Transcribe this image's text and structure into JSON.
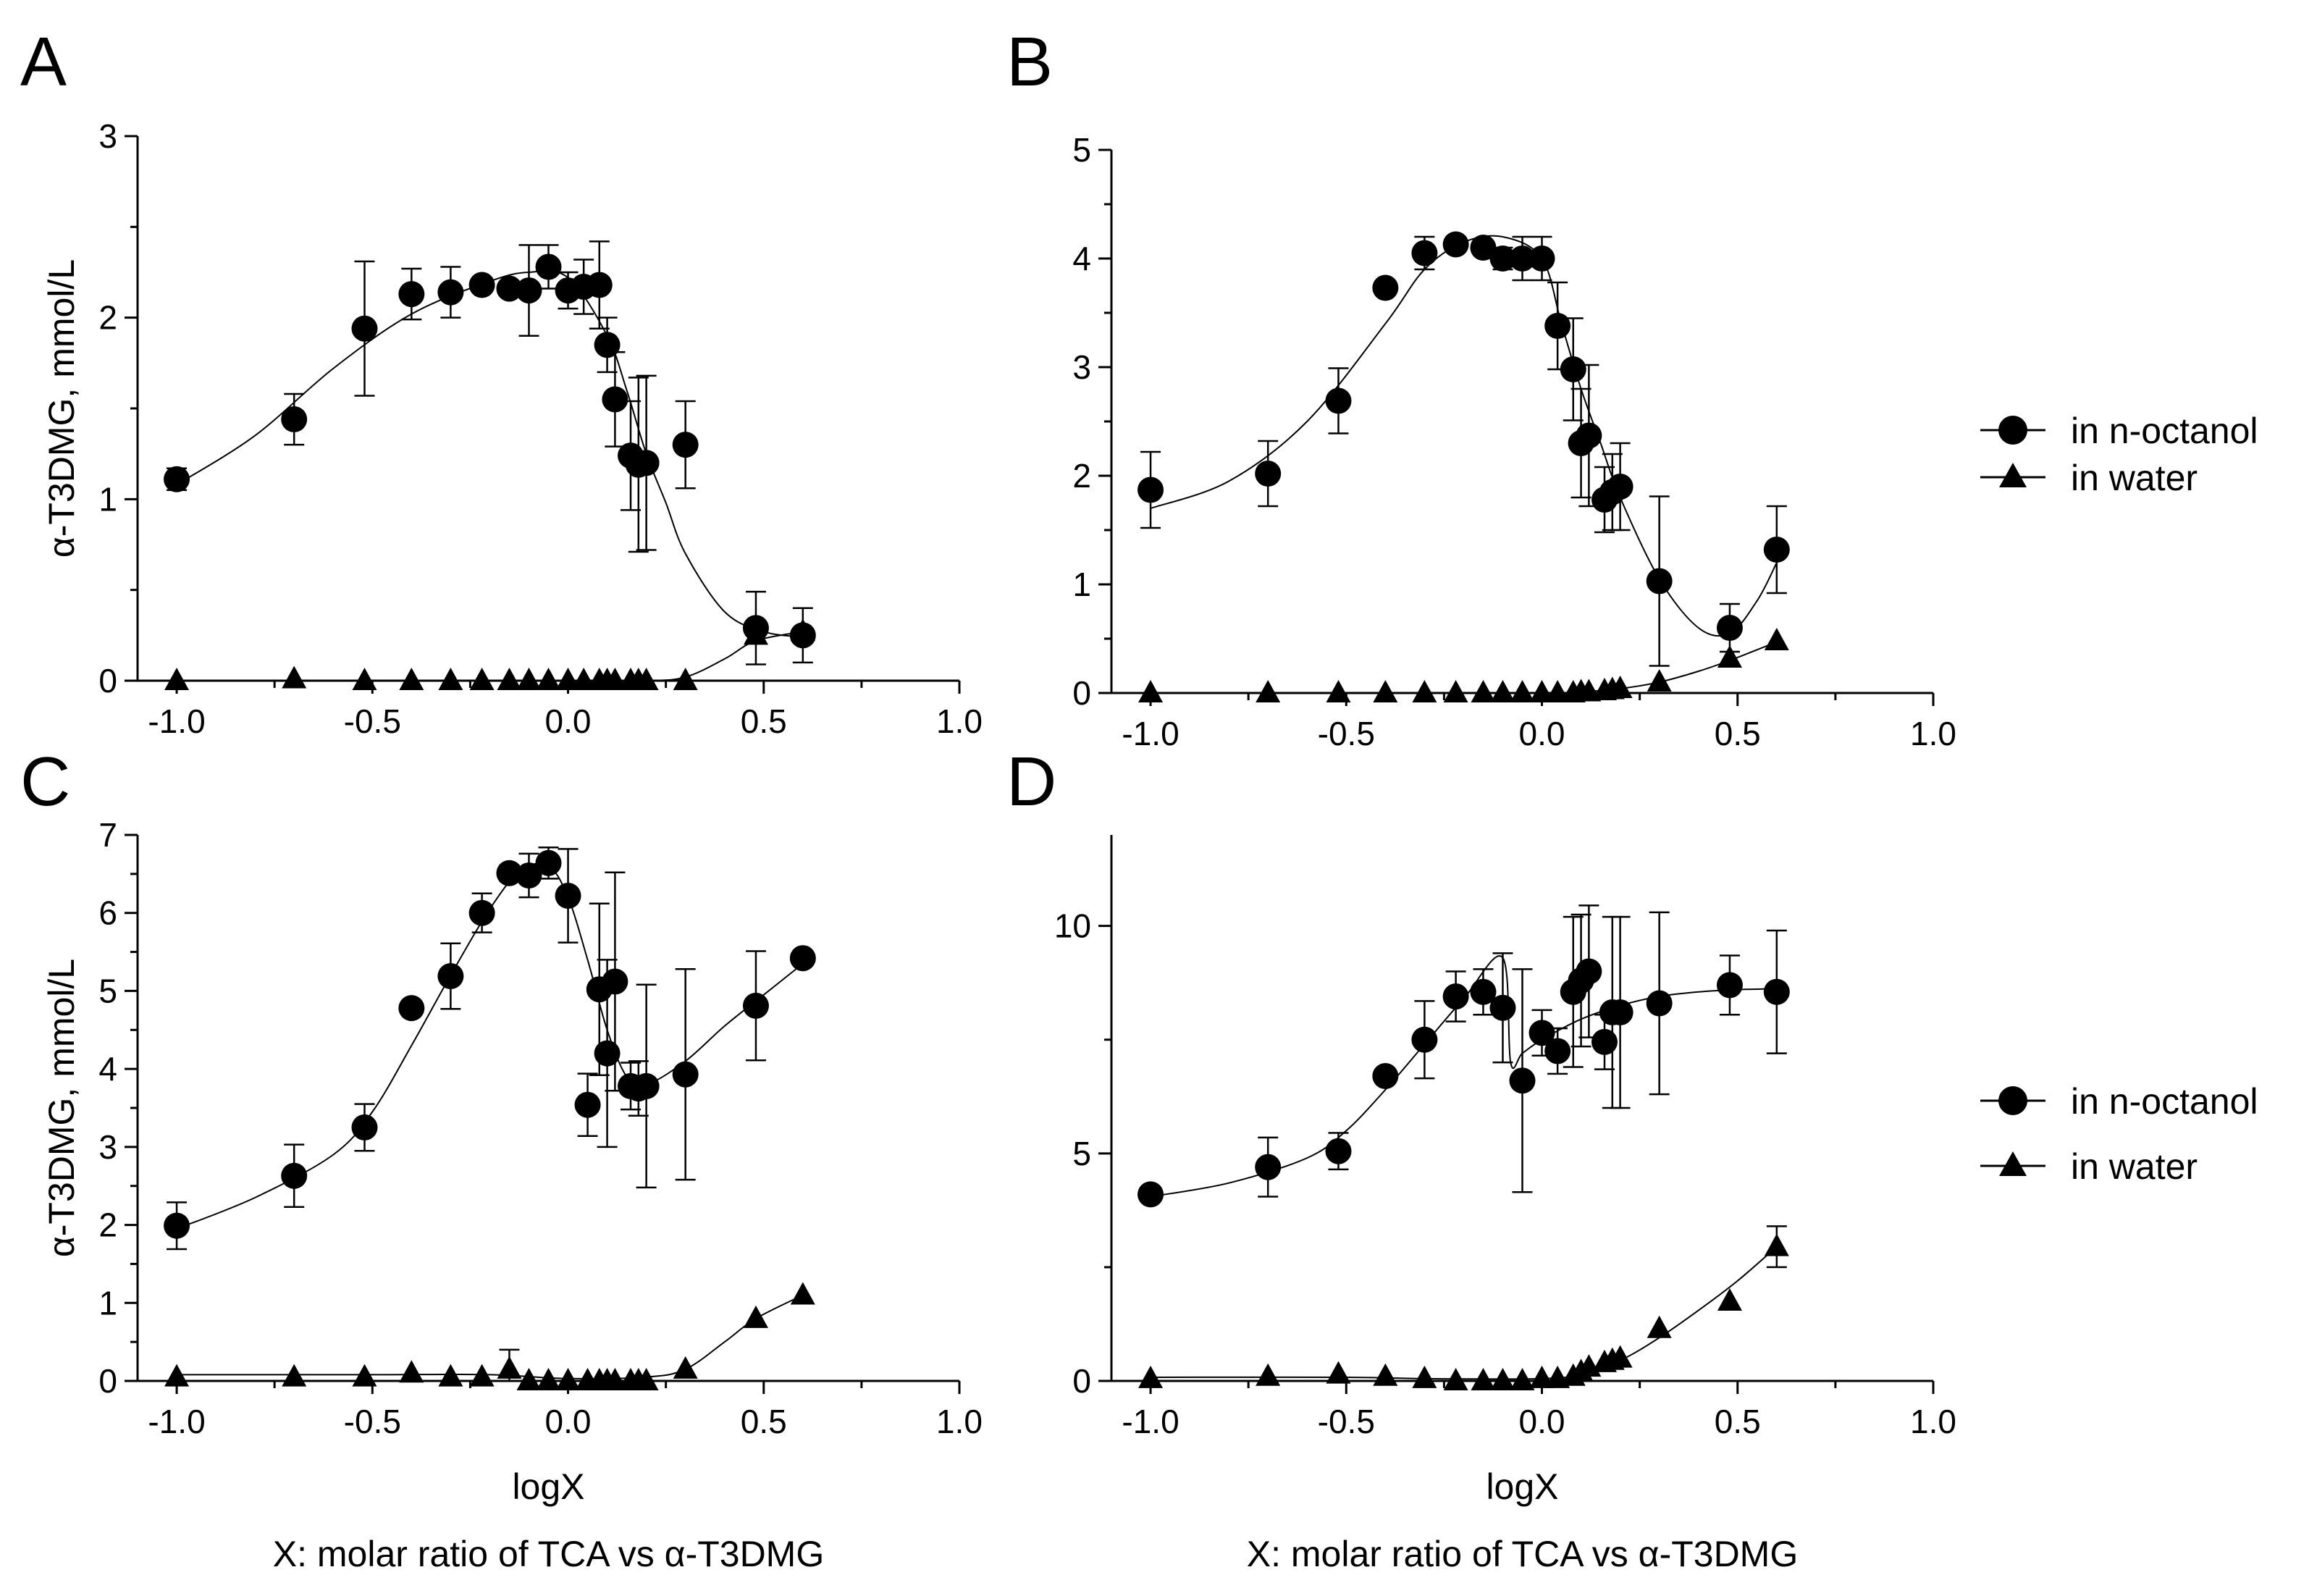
{
  "figure": {
    "shared_xlabel": "logX",
    "shared_xcaption": "X: molar ratio of TCA vs α-T3DMG",
    "legend": {
      "series": [
        "in n-octanol",
        "in water"
      ]
    }
  },
  "chart_data": [
    {
      "panel": "A",
      "type": "scatter",
      "title": "",
      "xlabel": "",
      "ylabel": "α-T3DMG, mmol/L",
      "xlim": [
        -1.1,
        1.0
      ],
      "ylim": [
        0,
        3
      ],
      "xticks": [
        -1.0,
        -0.5,
        0.0,
        0.5,
        1.0
      ],
      "xtick_labels": [
        "-1.0",
        "-0.5",
        "0.0",
        "0.5",
        "1.0"
      ],
      "yticks": [
        0,
        1,
        2,
        3
      ],
      "ytick_labels": [
        "0",
        "1",
        "2",
        "3"
      ],
      "series": [
        {
          "name": "in n-octanol",
          "marker": "circle",
          "x": [
            -1.0,
            -0.7,
            -0.52,
            -0.4,
            -0.3,
            -0.22,
            -0.15,
            -0.1,
            -0.05,
            0.0,
            0.04,
            0.08,
            0.1,
            0.12,
            0.16,
            0.18,
            0.2,
            0.3,
            0.48,
            0.6
          ],
          "y": [
            1.11,
            1.44,
            1.94,
            2.13,
            2.14,
            2.18,
            2.16,
            2.15,
            2.28,
            2.15,
            2.17,
            2.18,
            1.85,
            1.55,
            1.24,
            1.19,
            1.2,
            1.3,
            0.29,
            0.25
          ],
          "err": [
            0.06,
            0.14,
            0.37,
            0.14,
            0.14,
            0.0,
            0.0,
            0.25,
            0.12,
            0.1,
            0.15,
            0.24,
            0.15,
            0.26,
            0.3,
            0.48,
            0.48,
            0.24,
            0.2,
            0.15
          ],
          "fit_x": [
            -1.0,
            -0.8,
            -0.6,
            -0.4,
            -0.2,
            -0.1,
            0.0,
            0.1,
            0.15,
            0.2,
            0.25,
            0.3,
            0.4,
            0.5,
            0.6
          ],
          "fit_y": [
            1.08,
            1.35,
            1.72,
            2.02,
            2.2,
            2.25,
            2.22,
            1.9,
            1.6,
            1.25,
            0.98,
            0.7,
            0.38,
            0.27,
            0.24
          ]
        },
        {
          "name": "in water",
          "marker": "triangle",
          "x": [
            -1.0,
            -0.7,
            -0.52,
            -0.4,
            -0.3,
            -0.22,
            -0.15,
            -0.1,
            -0.05,
            0.0,
            0.04,
            0.08,
            0.1,
            0.12,
            0.16,
            0.18,
            0.2,
            0.3,
            0.48,
            0.6
          ],
          "y": [
            0,
            0.01,
            0,
            0,
            0,
            0,
            0,
            0,
            0,
            0,
            0,
            0,
            0,
            0,
            0,
            0,
            0,
            0,
            0.25,
            0.27
          ],
          "err": [],
          "fit_x": [
            -1.0,
            -0.5,
            0.0,
            0.2,
            0.3,
            0.4,
            0.48,
            0.6
          ],
          "fit_y": [
            0,
            0,
            0,
            0,
            0.02,
            0.12,
            0.22,
            0.27
          ]
        }
      ]
    },
    {
      "panel": "B",
      "type": "scatter",
      "title": "",
      "xlabel": "",
      "ylabel": "",
      "xlim": [
        -1.1,
        1.0
      ],
      "ylim": [
        0,
        5
      ],
      "xticks": [
        -1.0,
        -0.5,
        0.0,
        0.5,
        1.0
      ],
      "xtick_labels": [
        "-1.0",
        "-0.5",
        "0.0",
        "0.5",
        "1.0"
      ],
      "yticks": [
        0,
        1,
        2,
        3,
        4,
        5
      ],
      "ytick_labels": [
        "0",
        "1",
        "2",
        "3",
        "4",
        "5"
      ],
      "series": [
        {
          "name": "in n-octanol",
          "marker": "circle",
          "x": [
            -1.0,
            -0.7,
            -0.52,
            -0.4,
            -0.3,
            -0.22,
            -0.15,
            -0.1,
            -0.05,
            0.0,
            0.04,
            0.08,
            0.1,
            0.12,
            0.16,
            0.18,
            0.2,
            0.3,
            0.48,
            0.6
          ],
          "y": [
            1.87,
            2.02,
            2.69,
            3.73,
            4.05,
            4.13,
            4.1,
            4.0,
            4.0,
            4.0,
            3.38,
            2.98,
            2.3,
            2.37,
            1.78,
            1.85,
            1.9,
            1.03,
            0.6,
            1.32
          ],
          "err": [
            0.35,
            0.3,
            0.3,
            0.0,
            0.15,
            0.05,
            0.05,
            0.1,
            0.2,
            0.2,
            0.4,
            0.47,
            0.5,
            0.65,
            0.3,
            0.35,
            0.4,
            0.78,
            0.22,
            0.4
          ],
          "fit_x": [
            -1.0,
            -0.8,
            -0.6,
            -0.4,
            -0.3,
            -0.2,
            -0.1,
            0.0,
            0.05,
            0.1,
            0.15,
            0.2,
            0.3,
            0.4,
            0.48,
            0.55,
            0.6
          ],
          "fit_y": [
            1.7,
            1.95,
            2.5,
            3.4,
            3.9,
            4.15,
            4.2,
            4.0,
            3.4,
            2.8,
            2.3,
            1.8,
            1.05,
            0.6,
            0.55,
            0.85,
            1.2
          ]
        },
        {
          "name": "in water",
          "marker": "triangle",
          "x": [
            -1.0,
            -0.7,
            -0.52,
            -0.4,
            -0.3,
            -0.22,
            -0.15,
            -0.1,
            -0.05,
            0.0,
            0.04,
            0.08,
            0.1,
            0.12,
            0.16,
            0.18,
            0.2,
            0.3,
            0.48,
            0.6
          ],
          "y": [
            0,
            0,
            0,
            0,
            0,
            0,
            0,
            0,
            0,
            0,
            0,
            0,
            0.01,
            0.01,
            0.02,
            0.03,
            0.04,
            0.1,
            0.32,
            0.48
          ],
          "err": [],
          "fit_x": [
            -1.0,
            -0.5,
            0.0,
            0.1,
            0.2,
            0.3,
            0.4,
            0.48,
            0.6
          ],
          "fit_y": [
            0,
            0,
            0,
            0.01,
            0.04,
            0.1,
            0.2,
            0.3,
            0.47
          ]
        }
      ]
    },
    {
      "panel": "C",
      "type": "scatter",
      "title": "",
      "xlabel": "logX",
      "ylabel": "α-T3DMG, mmol/L",
      "xlim": [
        -1.1,
        1.0
      ],
      "ylim": [
        0,
        7
      ],
      "xticks": [
        -1.0,
        -0.5,
        0.0,
        0.5,
        1.0
      ],
      "xtick_labels": [
        "-1.0",
        "-0.5",
        "0.0",
        "0.5",
        "1.0"
      ],
      "yticks": [
        0,
        1,
        2,
        3,
        4,
        5,
        6,
        7
      ],
      "ytick_labels": [
        "0",
        "1",
        "2",
        "3",
        "4",
        "5",
        "6",
        "7"
      ],
      "series": [
        {
          "name": "in n-octanol",
          "marker": "circle",
          "x": [
            -1.0,
            -0.7,
            -0.52,
            -0.4,
            -0.3,
            -0.22,
            -0.15,
            -0.1,
            -0.05,
            0.0,
            0.05,
            0.08,
            0.1,
            0.12,
            0.16,
            0.18,
            0.2,
            0.3,
            0.48,
            0.6
          ],
          "y": [
            1.99,
            2.63,
            3.25,
            4.78,
            5.19,
            6.0,
            6.51,
            6.48,
            6.64,
            6.22,
            3.54,
            5.02,
            4.2,
            5.12,
            3.78,
            3.75,
            3.78,
            3.93,
            4.81,
            5.42
          ],
          "err": [
            0.3,
            0.4,
            0.3,
            0.0,
            0.42,
            0.25,
            0.1,
            0.28,
            0.2,
            0.6,
            0.4,
            1.1,
            1.2,
            1.4,
            0.3,
            0.35,
            1.3,
            1.35,
            0.7,
            0.0
          ],
          "fit_x": [
            -1.0,
            -0.8,
            -0.6,
            -0.5,
            -0.4,
            -0.3,
            -0.2,
            -0.12,
            -0.05,
            0.0,
            0.05,
            0.1,
            0.15,
            0.2,
            0.3,
            0.4,
            0.5,
            0.6
          ],
          "fit_y": [
            1.95,
            2.35,
            2.9,
            3.45,
            4.3,
            5.2,
            6.05,
            6.55,
            6.6,
            6.2,
            5.4,
            4.5,
            3.9,
            3.8,
            4.1,
            4.55,
            4.95,
            5.35
          ]
        },
        {
          "name": "in water",
          "marker": "triangle",
          "x": [
            -1.0,
            -0.7,
            -0.52,
            -0.4,
            -0.3,
            -0.22,
            -0.15,
            -0.1,
            -0.05,
            0.0,
            0.05,
            0.08,
            0.1,
            0.12,
            0.16,
            0.18,
            0.2,
            0.3,
            0.48,
            0.6
          ],
          "y": [
            0.05,
            0.05,
            0.05,
            0.1,
            0.05,
            0.05,
            0.15,
            0.0,
            0.0,
            0.0,
            0.0,
            0.0,
            0.0,
            0.0,
            0.0,
            0.0,
            0.0,
            0.15,
            0.8,
            1.1
          ],
          "err": [
            0,
            0,
            0,
            0,
            0,
            0,
            0.25,
            0,
            0,
            0,
            0,
            0,
            0,
            0,
            0,
            0,
            0,
            0,
            0,
            0
          ],
          "fit_x": [
            -1.0,
            -0.5,
            -0.2,
            0.0,
            0.2,
            0.3,
            0.4,
            0.48,
            0.6
          ],
          "fit_y": [
            0.08,
            0.08,
            0.08,
            0.03,
            0.05,
            0.15,
            0.5,
            0.8,
            1.1
          ]
        }
      ]
    },
    {
      "panel": "D",
      "type": "scatter",
      "title": "",
      "xlabel": "logX",
      "ylabel": "",
      "xlim": [
        -1.1,
        1.0
      ],
      "ylim": [
        0,
        12
      ],
      "xticks": [
        -1.0,
        -0.5,
        0.0,
        0.5,
        1.0
      ],
      "xtick_labels": [
        "-1.0",
        "-0.5",
        "0.0",
        "0.5",
        "1.0"
      ],
      "yticks": [
        0,
        5,
        10
      ],
      "ytick_labels": [
        "0",
        "5",
        "10"
      ],
      "minor_yticks": [
        2.5,
        7.5
      ],
      "series": [
        {
          "name": "in n-octanol",
          "marker": "circle",
          "x": [
            -1.0,
            -0.7,
            -0.52,
            -0.4,
            -0.3,
            -0.22,
            -0.15,
            -0.1,
            -0.05,
            0.0,
            0.04,
            0.08,
            0.1,
            0.12,
            0.16,
            0.18,
            0.2,
            0.3,
            0.48,
            0.6
          ],
          "y": [
            4.1,
            4.7,
            5.05,
            6.7,
            7.5,
            8.45,
            8.55,
            8.2,
            6.6,
            7.65,
            7.25,
            8.55,
            8.8,
            9.0,
            7.45,
            8.1,
            8.1,
            8.3,
            8.7,
            8.55
          ],
          "err": [
            0.0,
            0.65,
            0.4,
            0.0,
            0.85,
            0.55,
            0.5,
            1.2,
            2.45,
            0.5,
            0.5,
            1.65,
            1.45,
            1.45,
            0.6,
            2.1,
            2.1,
            2.0,
            0.65,
            1.35
          ],
          "fit_x": [
            -1.0,
            -0.8,
            -0.6,
            -0.5,
            -0.4,
            -0.3,
            -0.2,
            -0.1,
            -0.08,
            -0.05,
            0.0,
            0.1,
            0.2,
            0.3,
            0.4,
            0.5,
            0.6
          ],
          "fit_y": [
            4.05,
            4.35,
            4.9,
            5.5,
            6.4,
            7.4,
            8.4,
            9.3,
            7.0,
            7.2,
            7.5,
            7.95,
            8.25,
            8.45,
            8.55,
            8.6,
            8.62
          ]
        },
        {
          "name": "in water",
          "marker": "triangle",
          "x": [
            -1.0,
            -0.7,
            -0.52,
            -0.4,
            -0.3,
            -0.22,
            -0.15,
            -0.1,
            -0.05,
            0.0,
            0.04,
            0.08,
            0.1,
            0.12,
            0.16,
            0.18,
            0.2,
            0.3,
            0.48,
            0.6
          ],
          "y": [
            0.05,
            0.1,
            0.15,
            0.1,
            0.05,
            0.0,
            0.0,
            0.0,
            0.0,
            0.05,
            0.05,
            0.1,
            0.2,
            0.3,
            0.4,
            0.45,
            0.5,
            1.15,
            1.75,
            2.95
          ],
          "err": [
            0,
            0,
            0,
            0,
            0,
            0,
            0,
            0,
            0,
            0,
            0,
            0,
            0,
            0,
            0,
            0,
            0,
            0,
            0,
            0.45
          ],
          "fit_x": [
            -1.0,
            -0.5,
            -0.3,
            0.0,
            0.1,
            0.2,
            0.3,
            0.4,
            0.5,
            0.6
          ],
          "fit_y": [
            0.08,
            0.08,
            0.05,
            0.05,
            0.15,
            0.45,
            0.95,
            1.55,
            2.2,
            2.95
          ]
        }
      ]
    }
  ]
}
